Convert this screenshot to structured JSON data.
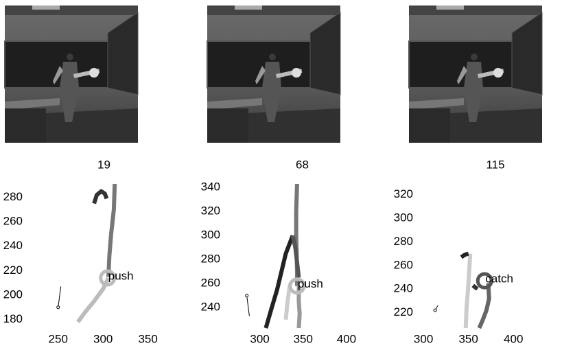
{
  "chart_data": [
    {
      "type": "line",
      "title": "19",
      "xlim": [
        212,
        390
      ],
      "ylim": [
        173,
        291
      ],
      "xticks": [
        250,
        300,
        350
      ],
      "yticks": [
        180,
        200,
        220,
        240,
        260,
        280
      ],
      "series": [
        {
          "color": "#777777",
          "x": [
            313,
            312,
            309,
            307,
            306
          ],
          "y": [
            291,
            270,
            250,
            232,
            215
          ]
        },
        {
          "color": "#bbbbbb",
          "x": [
            306,
            300,
            290,
            280,
            272
          ],
          "y": [
            214,
            205,
            195,
            186,
            178
          ]
        },
        {
          "color": "#333333",
          "x": [
            290,
            293,
            298,
            302,
            304
          ],
          "y": [
            275,
            282,
            285,
            283,
            279
          ]
        }
      ],
      "pointer": {
        "x": [
          250,
          253
        ],
        "y": [
          190,
          207
        ]
      },
      "marker": {
        "x": 305,
        "y": 214,
        "color": "#bbbbbb",
        "label": "push"
      }
    },
    {
      "type": "line",
      "title": "68",
      "xlim": [
        256,
        442
      ],
      "ylim": [
        223,
        343
      ],
      "xticks": [
        300,
        350,
        400
      ],
      "yticks": [
        240,
        260,
        280,
        300,
        320,
        340
      ],
      "series": [
        {
          "color": "#777777",
          "x": [
            343,
            342,
            342,
            343,
            343
          ],
          "y": [
            343,
            320,
            300,
            270,
            258
          ]
        },
        {
          "color": "#222222",
          "x": [
            307,
            313,
            320,
            330,
            338
          ],
          "y": [
            223,
            238,
            255,
            285,
            300
          ]
        },
        {
          "color": "#555555",
          "x": [
            338,
            341,
            343,
            345
          ],
          "y": [
            300,
            290,
            278,
            265
          ]
        },
        {
          "color": "#999999",
          "x": [
            345,
            345,
            346,
            345
          ],
          "y": [
            258,
            245,
            235,
            223
          ]
        },
        {
          "color": "#cccccc",
          "x": [
            330,
            332,
            335
          ],
          "y": [
            230,
            245,
            260
          ]
        }
      ],
      "pointer": {
        "x": [
          285,
          288
        ],
        "y": [
          250,
          233
        ]
      },
      "marker": {
        "x": 343,
        "y": 258,
        "color": "#bbbbbb",
        "label": "push"
      }
    },
    {
      "type": "line",
      "title": "115",
      "xlim": [
        290,
        470
      ],
      "ylim": [
        207,
        329
      ],
      "xticks": [
        300,
        350,
        400
      ],
      "yticks": [
        220,
        240,
        260,
        280,
        300,
        320
      ],
      "series": [
        {
          "color": "#cccccc",
          "x": [
            347,
            348,
            350,
            352
          ],
          "y": [
            207,
            225,
            245,
            270
          ]
        },
        {
          "color": "#222222",
          "x": [
            342,
            346,
            350
          ],
          "y": [
            267,
            269,
            270
          ]
        },
        {
          "color": "#666666",
          "x": [
            372,
            373,
            370,
            366,
            362
          ],
          "y": [
            245,
            232,
            222,
            214,
            207
          ]
        },
        {
          "color": "#333333",
          "x": [
            355,
            360
          ],
          "y": [
            243,
            240
          ]
        }
      ],
      "pointer": {
        "x": [
          313,
          316
        ],
        "y": [
          222,
          226
        ]
      },
      "marker": {
        "x": 368,
        "y": 247,
        "color": "#555555",
        "label": "catch"
      }
    }
  ]
}
